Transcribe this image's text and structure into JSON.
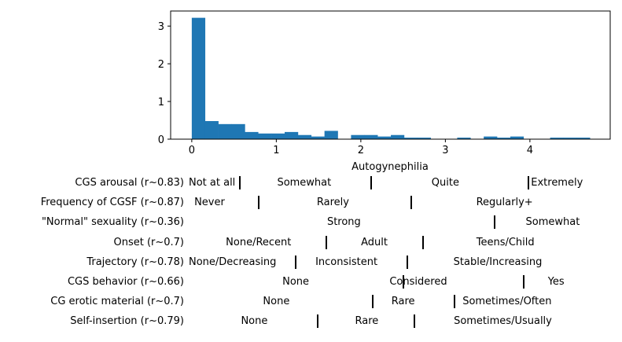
{
  "chart_data": {
    "type": "bar",
    "xlabel": "Autogynephilia",
    "ylabel": "",
    "title": "",
    "xlim": [
      -0.25,
      4.95
    ],
    "ylim": [
      0,
      3.4
    ],
    "xticks": [
      0,
      1,
      2,
      3,
      4
    ],
    "yticks": [
      0,
      1,
      2,
      3
    ],
    "bar_color": "#1f77b4",
    "bin_width": 0.157,
    "bins": [
      {
        "x": 0.0,
        "y": 3.22
      },
      {
        "x": 0.157,
        "y": 0.48
      },
      {
        "x": 0.314,
        "y": 0.4
      },
      {
        "x": 0.471,
        "y": 0.4
      },
      {
        "x": 0.628,
        "y": 0.19
      },
      {
        "x": 0.785,
        "y": 0.15
      },
      {
        "x": 0.942,
        "y": 0.15
      },
      {
        "x": 1.099,
        "y": 0.19
      },
      {
        "x": 1.256,
        "y": 0.11
      },
      {
        "x": 1.413,
        "y": 0.07
      },
      {
        "x": 1.57,
        "y": 0.22
      },
      {
        "x": 1.727,
        "y": 0.0
      },
      {
        "x": 1.884,
        "y": 0.11
      },
      {
        "x": 2.041,
        "y": 0.11
      },
      {
        "x": 2.198,
        "y": 0.07
      },
      {
        "x": 2.355,
        "y": 0.11
      },
      {
        "x": 2.512,
        "y": 0.04
      },
      {
        "x": 2.669,
        "y": 0.04
      },
      {
        "x": 2.826,
        "y": 0.0
      },
      {
        "x": 2.983,
        "y": 0.0
      },
      {
        "x": 3.14,
        "y": 0.04
      },
      {
        "x": 3.297,
        "y": 0.0
      },
      {
        "x": 3.454,
        "y": 0.07
      },
      {
        "x": 3.611,
        "y": 0.04
      },
      {
        "x": 3.768,
        "y": 0.07
      },
      {
        "x": 3.925,
        "y": 0.0
      },
      {
        "x": 4.082,
        "y": 0.0
      },
      {
        "x": 4.239,
        "y": 0.04
      },
      {
        "x": 4.396,
        "y": 0.04
      },
      {
        "x": 4.553,
        "y": 0.04
      }
    ]
  },
  "scales": [
    {
      "title": "CGS arousal (r~0.83)",
      "labels": [
        {
          "text": "Not at all",
          "x": 0.0
        },
        {
          "text": "Somewhat",
          "x": 1.33
        },
        {
          "text": "Quite",
          "x": 3.0
        },
        {
          "text": "Extremely",
          "x": 4.32
        }
      ],
      "dividers": [
        0.57,
        2.12,
        3.98
      ]
    },
    {
      "title": "Frequency of CGSF (r~0.87)",
      "labels": [
        {
          "text": "Never",
          "x": 0.21
        },
        {
          "text": "Rarely",
          "x": 1.67
        },
        {
          "text": "Regularly+",
          "x": 3.7
        }
      ],
      "dividers": [
        0.79,
        2.6
      ]
    },
    {
      "title": "\"Normal\" sexuality (r~0.36)",
      "labels": [
        {
          "text": "Strong",
          "x": 1.8
        },
        {
          "text": "Somewhat",
          "x": 4.27
        }
      ],
      "dividers": [
        3.58
      ]
    },
    {
      "title": "Onset (r~0.7)",
      "labels": [
        {
          "text": "None/Recent",
          "x": 0.79
        },
        {
          "text": "Adult",
          "x": 2.16
        },
        {
          "text": "Teens/Child",
          "x": 3.71
        }
      ],
      "dividers": [
        1.59,
        2.74
      ]
    },
    {
      "title": "Trajectory (r~0.78)",
      "labels": [
        {
          "text": "None/Decreasing",
          "x": 0.21
        },
        {
          "text": "Inconsistent",
          "x": 1.83
        },
        {
          "text": "Stable/Increasing",
          "x": 3.62
        }
      ],
      "dividers": [
        1.23,
        2.55
      ]
    },
    {
      "title": "CGS behavior (r~0.66)",
      "labels": [
        {
          "text": "None",
          "x": 1.23
        },
        {
          "text": "Considered",
          "x": 2.68
        },
        {
          "text": "Yes",
          "x": 4.31
        }
      ],
      "dividers": [
        2.5,
        3.93
      ]
    },
    {
      "title": "CG erotic material (r~0.7)",
      "labels": [
        {
          "text": "None",
          "x": 1.0
        },
        {
          "text": "Rare",
          "x": 2.5
        },
        {
          "text": "Sometimes/Often",
          "x": 3.73
        }
      ],
      "dividers": [
        2.14,
        3.11
      ]
    },
    {
      "title": "Self-insertion (r~0.79)",
      "labels": [
        {
          "text": "None",
          "x": 0.74
        },
        {
          "text": "Rare",
          "x": 2.07
        },
        {
          "text": "Sometimes/Usually",
          "x": 3.68
        }
      ],
      "dividers": [
        1.49,
        2.63
      ]
    }
  ]
}
